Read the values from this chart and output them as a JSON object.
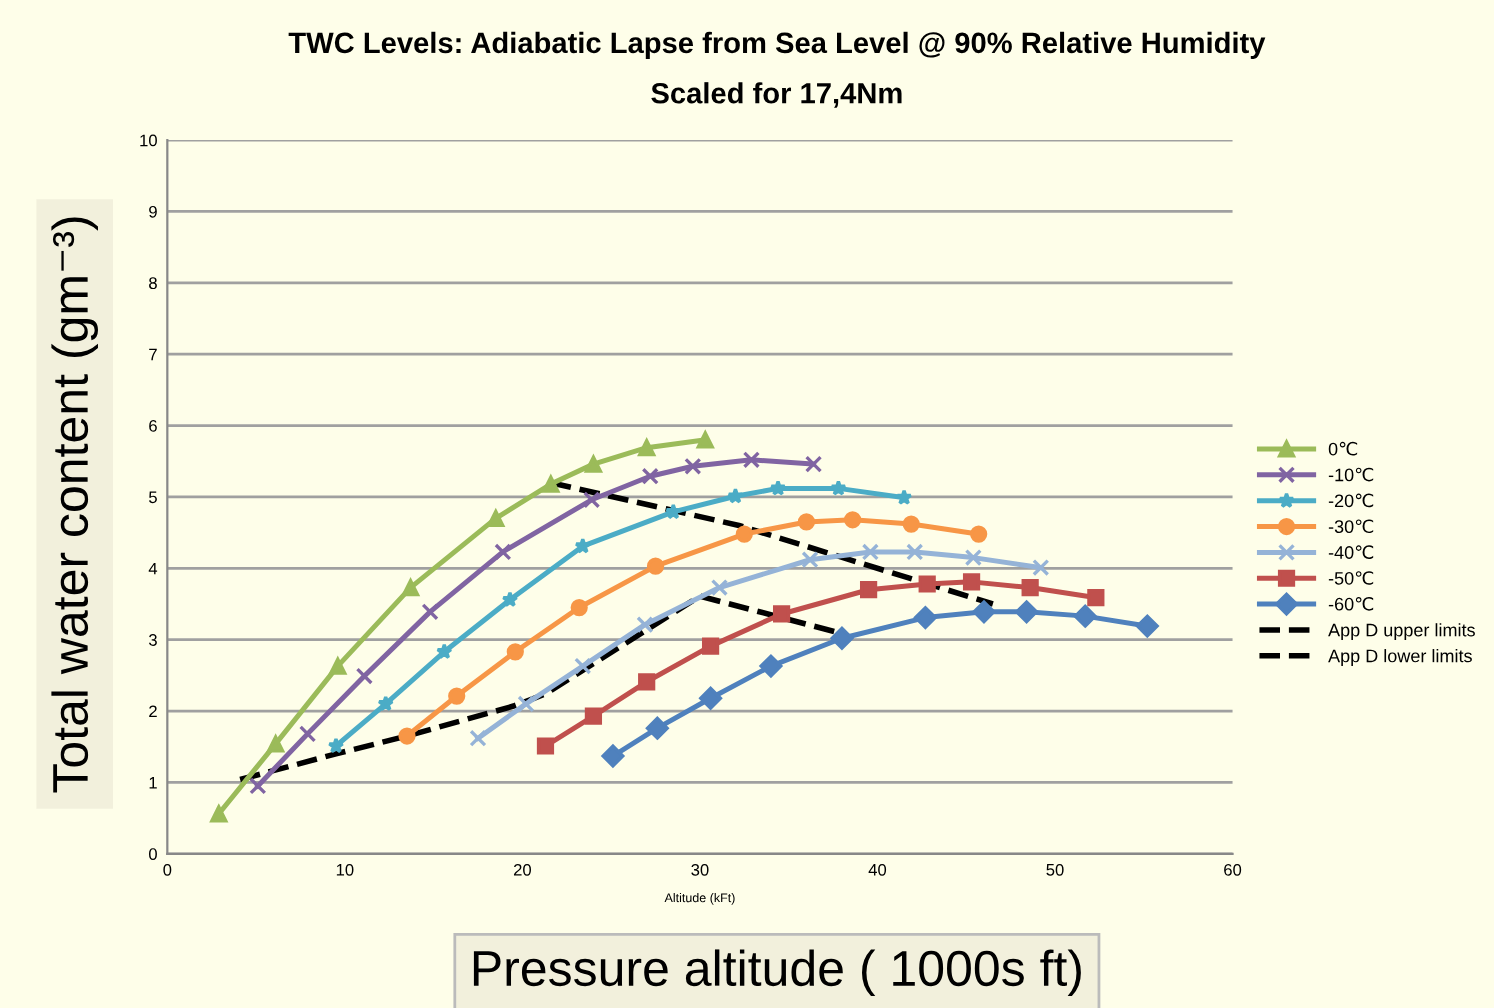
{
  "chart_data": {
    "type": "line",
    "title": "TWC Levels: Adiabatic Lapse from Sea Level @ 90% Relative Humidity",
    "subtitle": "Scaled for 17,4Nm",
    "xlabel": "Pressure altitude ( 1000s ft)",
    "ylabel": "Total water content (gm⁻³)",
    "annotations": [
      "Altitude (kFt)"
    ],
    "xlim": [
      0,
      60
    ],
    "xticks": [
      0,
      10,
      20,
      30,
      40,
      50,
      60
    ],
    "ylim": [
      0,
      10
    ],
    "yticks": [
      0,
      1,
      2,
      3,
      4,
      5,
      6,
      7,
      8,
      9,
      10
    ],
    "grid": "y",
    "legend": "right",
    "line_style": "solid",
    "series": [
      {
        "name": "0℃",
        "color": "#9bbb59",
        "marker": "triangle",
        "x": [
          2.9,
          6.1,
          9.6,
          13.7,
          18.5,
          21.6,
          24.0,
          27.0,
          30.3
        ],
        "values": [
          0.56,
          1.54,
          2.63,
          3.73,
          4.7,
          5.18,
          5.46,
          5.69,
          5.8
        ]
      },
      {
        "name": "-10℃",
        "color": "#8064a2",
        "marker": "cross",
        "x": [
          5.1,
          7.9,
          11.1,
          14.8,
          18.9,
          23.9,
          27.2,
          29.6,
          32.9,
          36.4
        ],
        "values": [
          0.95,
          1.68,
          2.49,
          3.39,
          4.23,
          4.96,
          5.29,
          5.43,
          5.52,
          5.46
        ]
      },
      {
        "name": "-20℃",
        "color": "#4bacc6",
        "marker": "star",
        "x": [
          9.5,
          12.3,
          15.6,
          19.3,
          23.4,
          28.5,
          32.0,
          34.4,
          37.8,
          41.5
        ],
        "values": [
          1.51,
          2.1,
          2.83,
          3.56,
          4.31,
          4.79,
          5.01,
          5.12,
          5.12,
          4.99
        ]
      },
      {
        "name": "-30℃",
        "color": "#f79646",
        "marker": "circle",
        "x": [
          13.5,
          16.3,
          19.6,
          23.2,
          27.5,
          32.5,
          36.0,
          38.6,
          41.9,
          45.7
        ],
        "values": [
          1.65,
          2.21,
          2.83,
          3.45,
          4.03,
          4.48,
          4.65,
          4.68,
          4.62,
          4.48
        ]
      },
      {
        "name": "-40℃",
        "color": "#95b3d7",
        "marker": "cross",
        "x": [
          17.5,
          20.2,
          23.4,
          26.9,
          31.1,
          36.2,
          39.6,
          42.1,
          45.4,
          49.2
        ],
        "values": [
          1.62,
          2.1,
          2.63,
          3.21,
          3.73,
          4.12,
          4.23,
          4.23,
          4.15,
          4.01
        ]
      },
      {
        "name": "-50℃",
        "color": "#c0504d",
        "marker": "square",
        "x": [
          21.3,
          24.0,
          27.0,
          30.6,
          34.6,
          39.5,
          42.8,
          45.3,
          48.6,
          52.3
        ],
        "values": [
          1.51,
          1.93,
          2.41,
          2.91,
          3.36,
          3.7,
          3.78,
          3.81,
          3.73,
          3.59
        ]
      },
      {
        "name": "-60℃",
        "color": "#4f81bd",
        "marker": "diamond",
        "x": [
          25.1,
          27.6,
          30.6,
          34.0,
          38.0,
          42.7,
          46.0,
          48.4,
          51.7,
          55.2
        ],
        "values": [
          1.37,
          1.76,
          2.18,
          2.63,
          3.02,
          3.31,
          3.39,
          3.39,
          3.33,
          3.19
        ]
      },
      {
        "name": "App D upper limits",
        "color": "#000000",
        "marker": "none",
        "line_style": "dashed",
        "x": [
          21.6,
          32.2,
          46.5
        ],
        "values": [
          5.2,
          4.6,
          3.5
        ]
      },
      {
        "name": "App D lower limits",
        "color": "#000000",
        "marker": "none",
        "line_style": "dashed",
        "x": [
          4.1,
          9.5,
          13.5,
          19.5,
          21.3,
          30.0,
          38.1
        ],
        "values": [
          1.04,
          1.4,
          1.65,
          2.07,
          2.24,
          3.61,
          3.08
        ]
      }
    ]
  }
}
